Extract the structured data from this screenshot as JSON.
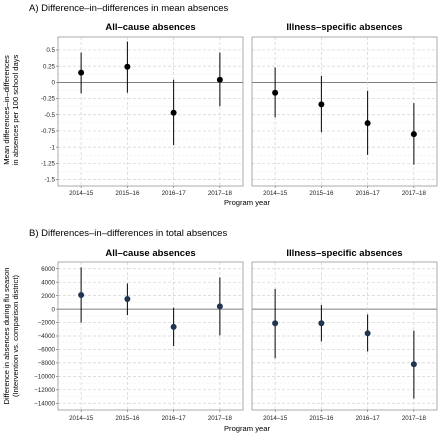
{
  "chart_data": [
    {
      "type": "scatter",
      "title": "A) Difference–in–differences in mean absences",
      "ylabel": "Mean differences–in–differences in absences per 100 school days",
      "xlabel": "Program year",
      "categories": [
        "2014–15",
        "2015–16",
        "2016–17",
        "2017–18"
      ],
      "ylim": [
        -1.6,
        0.7
      ],
      "yticks": [
        0.5,
        0.25,
        0,
        -0.25,
        -0.5,
        -0.75,
        -1,
        -1.25,
        -1.5
      ],
      "ytick_labels": [
        "0.5",
        "0.25",
        "0",
        "-0.25",
        "-0.5",
        "-0.75",
        "-1",
        "-1.25",
        "-1.5"
      ],
      "point_color": "#000000",
      "grid": true,
      "facets": [
        {
          "title": "All–cause absences",
          "estimates": [
            0.15,
            0.24,
            -0.47,
            0.04
          ],
          "lower": [
            -0.17,
            -0.16,
            -0.97,
            -0.37
          ],
          "upper": [
            0.46,
            0.63,
            0.04,
            0.46
          ]
        },
        {
          "title": "Illness–specific absences",
          "estimates": [
            -0.16,
            -0.34,
            -0.63,
            -0.8
          ],
          "lower": [
            -0.54,
            -0.77,
            -1.12,
            -1.27
          ],
          "upper": [
            0.23,
            0.1,
            -0.13,
            -0.32
          ]
        }
      ]
    },
    {
      "type": "scatter",
      "title": "B) Differences–in–differences in total absences",
      "ylabel": "Difference in absences during flu season (Intervention vs. comparison district)",
      "xlabel": "Program year",
      "categories": [
        "2014–15",
        "2015–16",
        "2016–17",
        "2017–18"
      ],
      "ylim": [
        -15000,
        7000
      ],
      "yticks": [
        6000,
        4000,
        2000,
        0,
        -2000,
        -4000,
        -6000,
        -8000,
        -10000,
        -12000,
        -14000
      ],
      "ytick_labels": [
        "6000",
        "4000",
        "2000",
        "0",
        "−2000",
        "−4000",
        "−6000",
        "−8000",
        "−10000",
        "−12000",
        "−14000"
      ],
      "point_color": "#1f3550",
      "grid": true,
      "facets": [
        {
          "title": "All–cause absences",
          "estimates": [
            2100,
            1500,
            -2650,
            400
          ],
          "lower": [
            -2000,
            -900,
            -5500,
            -3900
          ],
          "upper": [
            6200,
            3800,
            200,
            4700
          ]
        },
        {
          "title": "Illness–specific absences",
          "estimates": [
            -2100,
            -2100,
            -3600,
            -8200
          ],
          "lower": [
            -7300,
            -4800,
            -6300,
            -13300
          ],
          "upper": [
            3000,
            600,
            -800,
            -3200
          ]
        }
      ]
    }
  ]
}
